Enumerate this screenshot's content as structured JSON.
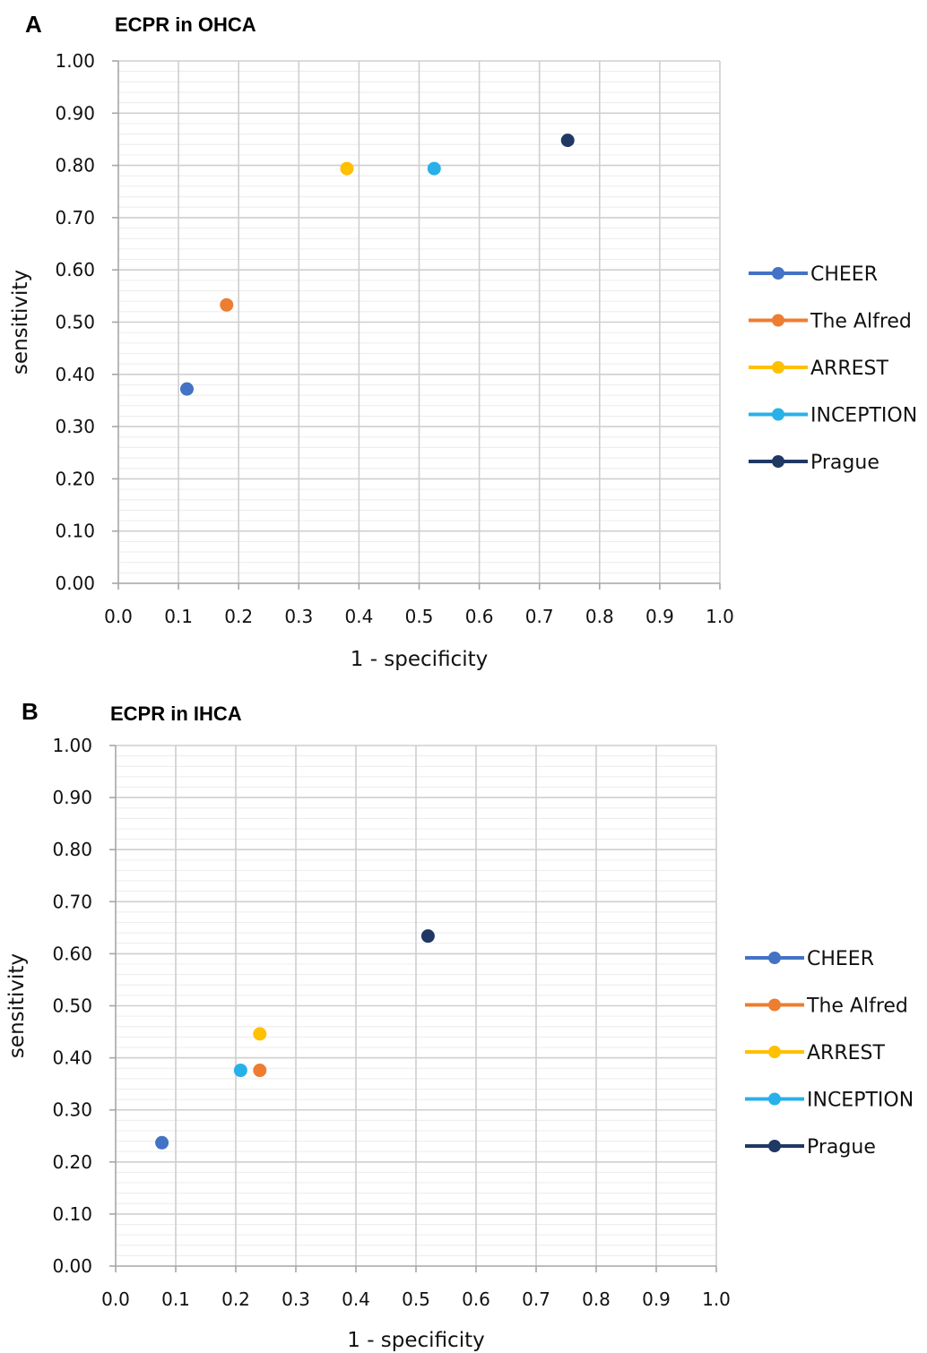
{
  "chart_data": [
    {
      "panel": "A",
      "type": "scatter",
      "title": "ECPR in OHCA",
      "xlabel": "1 - specificity",
      "ylabel": "sensitivity",
      "xlim": [
        0,
        1
      ],
      "ylim": [
        0,
        1
      ],
      "xticks": [
        "0.0",
        "0.1",
        "0.2",
        "0.3",
        "0.4",
        "0.5",
        "0.6",
        "0.7",
        "0.8",
        "0.9",
        "1.0"
      ],
      "yticks": [
        "0.00",
        "0.10",
        "0.20",
        "0.30",
        "0.40",
        "0.50",
        "0.60",
        "0.70",
        "0.80",
        "0.90",
        "1.00"
      ],
      "grid": true,
      "legend_position": "right",
      "series": [
        {
          "name": "CHEER",
          "color": "#4472c4",
          "x": 0.114,
          "y": 0.372
        },
        {
          "name": "The Alfred",
          "color": "#ed7d31",
          "x": 0.18,
          "y": 0.533
        },
        {
          "name": "ARREST",
          "color": "#ffc000",
          "x": 0.38,
          "y": 0.794
        },
        {
          "name": "INCEPTION",
          "color": "#28b1e8",
          "x": 0.525,
          "y": 0.794
        },
        {
          "name": "Prague",
          "color": "#1f3864",
          "x": 0.747,
          "y": 0.848
        }
      ]
    },
    {
      "panel": "B",
      "type": "scatter",
      "title": "ECPR in IHCA",
      "xlabel": "1 - specificity",
      "ylabel": "sensitivity",
      "xlim": [
        0,
        1
      ],
      "ylim": [
        0,
        1
      ],
      "xticks": [
        "0.0",
        "0.1",
        "0.2",
        "0.3",
        "0.4",
        "0.5",
        "0.6",
        "0.7",
        "0.8",
        "0.9",
        "1.0"
      ],
      "yticks": [
        "0.00",
        "0.10",
        "0.20",
        "0.30",
        "0.40",
        "0.50",
        "0.60",
        "0.70",
        "0.80",
        "0.90",
        "1.00"
      ],
      "grid": true,
      "legend_position": "right",
      "series": [
        {
          "name": "CHEER",
          "color": "#4472c4",
          "x": 0.077,
          "y": 0.237
        },
        {
          "name": "The Alfred",
          "color": "#ed7d31",
          "x": 0.24,
          "y": 0.376
        },
        {
          "name": "ARREST",
          "color": "#ffc000",
          "x": 0.24,
          "y": 0.446
        },
        {
          "name": "INCEPTION",
          "color": "#28b1e8",
          "x": 0.208,
          "y": 0.376
        },
        {
          "name": "Prague",
          "color": "#1f3864",
          "x": 0.52,
          "y": 0.634
        }
      ]
    }
  ]
}
